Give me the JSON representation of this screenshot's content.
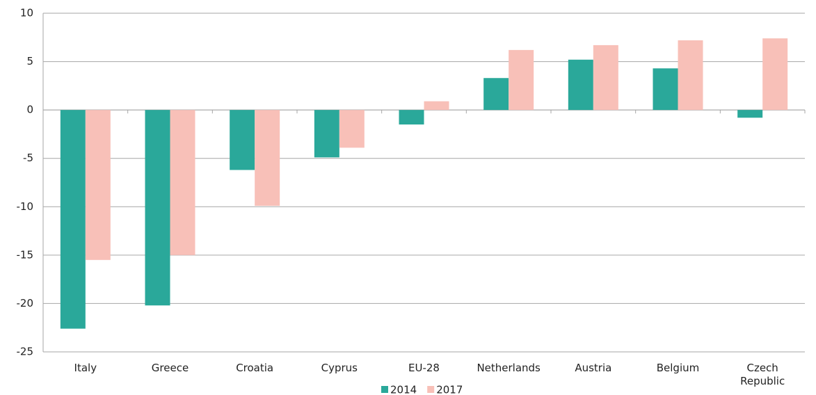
{
  "chart_data": {
    "type": "bar",
    "categories": [
      "Italy",
      "Greece",
      "Croatia",
      "Cyprus",
      "EU-28",
      "Netherlands",
      "Austria",
      "Belgium",
      "Czech Republic"
    ],
    "series": [
      {
        "name": "2014",
        "color": "#2aa89a",
        "values": [
          -22.6,
          -20.2,
          -6.2,
          -4.9,
          -1.5,
          3.3,
          5.2,
          4.3,
          -0.8
        ]
      },
      {
        "name": "2017",
        "color": "#f8c0b8",
        "values": [
          -15.5,
          -15.0,
          -9.9,
          -3.9,
          0.9,
          6.2,
          6.7,
          7.2,
          7.4
        ]
      }
    ],
    "ylim": [
      -25,
      10
    ],
    "yticks": [
      -25,
      -20,
      -15,
      -10,
      -5,
      0,
      5,
      10
    ],
    "grid": true,
    "legend": "bottom"
  }
}
